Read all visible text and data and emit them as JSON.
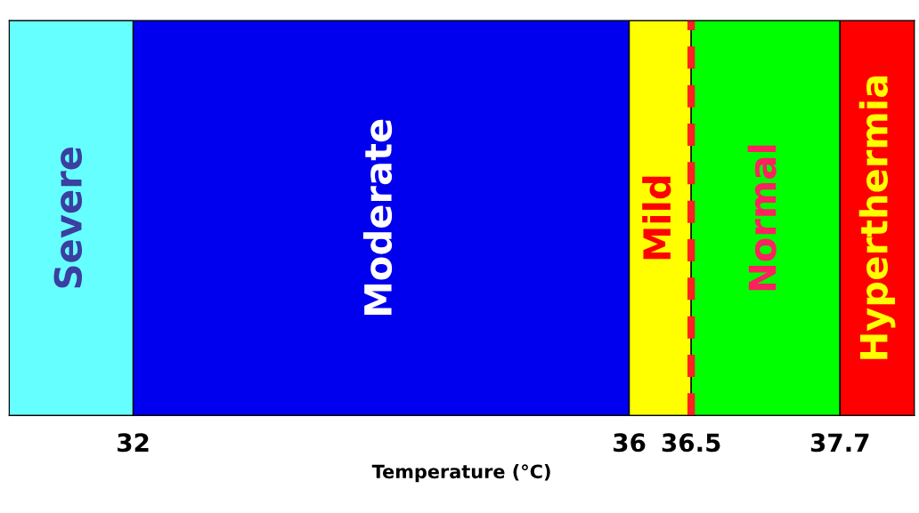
{
  "chart_data": {
    "type": "bar",
    "orientation": "horizontal",
    "xlabel": "Temperature (°C)",
    "categories": [
      null
    ],
    "values": [
      null
    ],
    "xlim": [
      31,
      38.3
    ],
    "xticks": [
      32,
      36,
      36.5,
      37.7
    ],
    "tick_labels": "x",
    "bands": [
      {
        "axis": "x",
        "from": 31,
        "to": 32,
        "label": "Severe",
        "color": "#66ffff"
      },
      {
        "axis": "x",
        "from": 32,
        "to": 36,
        "label": "Moderate",
        "color": "#0000ee"
      },
      {
        "axis": "x",
        "from": 36,
        "to": 36.5,
        "label": "Mild",
        "color": "#ffff00"
      },
      {
        "axis": "x",
        "from": 36.5,
        "to": 37.7,
        "label": "Normal",
        "color": "#00ff00"
      },
      {
        "axis": "x",
        "from": 37.7,
        "to": 38.3,
        "label": "Hyperthermia",
        "color": "#ff0000"
      }
    ],
    "ref_lines": [
      {
        "axis": "x",
        "value": 36.5,
        "color": "#ff2020",
        "line_style": "dashed"
      }
    ]
  }
}
